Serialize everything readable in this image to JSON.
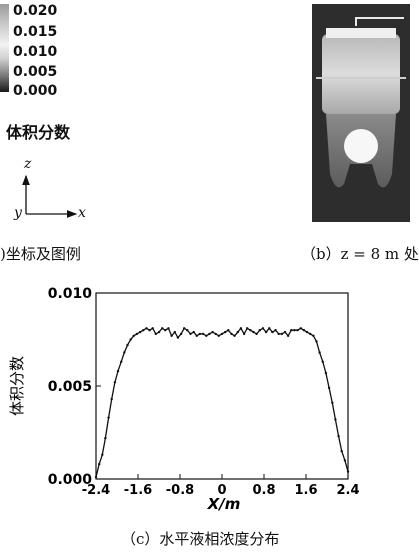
{
  "legend": {
    "ticks": [
      "0.020",
      "0.015",
      "0.010",
      "0.005",
      "0.000"
    ],
    "title": "体积分数"
  },
  "axes_icon": {
    "z": "z",
    "y": "y",
    "x": "x"
  },
  "captions": {
    "a": ")坐标及图例",
    "b": "（b）z = 8  m 处",
    "c": "（c）水平液相浓度分布"
  },
  "chart_data": {
    "type": "line",
    "xlabel": "X/m",
    "ylabel": "体积分数",
    "xlim": [
      -2.4,
      2.4
    ],
    "ylim": [
      0.0,
      0.01
    ],
    "x_ticks": [
      "-2.4",
      "-1.6",
      "-0.8",
      "0",
      "0.8",
      "1.6",
      "2.4"
    ],
    "y_ticks": [
      "0.000",
      "0.005",
      "0.010"
    ],
    "x": [
      -2.4,
      -2.34,
      -2.28,
      -2.22,
      -2.16,
      -2.1,
      -2.04,
      -1.98,
      -1.92,
      -1.86,
      -1.8,
      -1.74,
      -1.68,
      -1.62,
      -1.56,
      -1.5,
      -1.44,
      -1.38,
      -1.32,
      -1.26,
      -1.2,
      -1.14,
      -1.08,
      -1.02,
      -0.96,
      -0.9,
      -0.84,
      -0.78,
      -0.72,
      -0.66,
      -0.6,
      -0.54,
      -0.48,
      -0.42,
      -0.36,
      -0.3,
      -0.24,
      -0.18,
      -0.12,
      -0.06,
      0.0,
      0.06,
      0.12,
      0.18,
      0.24,
      0.3,
      0.36,
      0.42,
      0.48,
      0.54,
      0.6,
      0.66,
      0.72,
      0.78,
      0.84,
      0.9,
      0.96,
      1.02,
      1.08,
      1.14,
      1.2,
      1.26,
      1.32,
      1.38,
      1.44,
      1.5,
      1.56,
      1.62,
      1.68,
      1.74,
      1.8,
      1.86,
      1.92,
      1.98,
      2.04,
      2.1,
      2.16,
      2.22,
      2.28,
      2.34,
      2.4
    ],
    "y": [
      0.0001,
      0.0008,
      0.0013,
      0.0022,
      0.0033,
      0.0043,
      0.0052,
      0.0058,
      0.0063,
      0.0068,
      0.0072,
      0.0075,
      0.0077,
      0.0078,
      0.0079,
      0.008,
      0.0081,
      0.008,
      0.0081,
      0.0078,
      0.0079,
      0.0081,
      0.008,
      0.0081,
      0.0077,
      0.0079,
      0.0076,
      0.0078,
      0.0081,
      0.008,
      0.0078,
      0.0079,
      0.0077,
      0.0078,
      0.0078,
      0.0077,
      0.0078,
      0.0079,
      0.0078,
      0.0077,
      0.0078,
      0.0079,
      0.008,
      0.0078,
      0.0077,
      0.0079,
      0.0081,
      0.0078,
      0.0081,
      0.008,
      0.0079,
      0.0078,
      0.008,
      0.0081,
      0.0079,
      0.0081,
      0.0079,
      0.008,
      0.0078,
      0.0078,
      0.0079,
      0.0077,
      0.008,
      0.008,
      0.008,
      0.0081,
      0.008,
      0.0079,
      0.0078,
      0.0077,
      0.0074,
      0.0068,
      0.0063,
      0.0057,
      0.0049,
      0.0041,
      0.0032,
      0.0023,
      0.0015,
      0.001,
      0.0004
    ]
  },
  "colors": {
    "panel_bg": "#2d2d2d",
    "line": "#111111"
  }
}
